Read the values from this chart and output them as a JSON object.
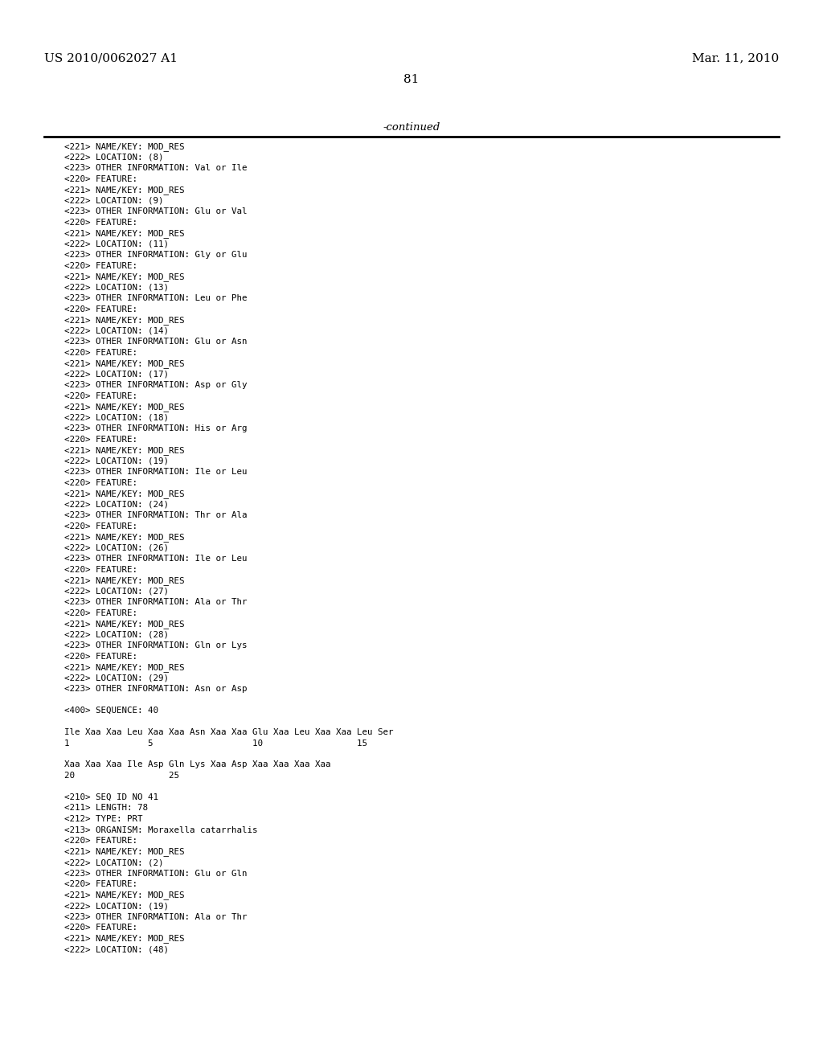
{
  "header_left": "US 2010/0062027 A1",
  "header_right": "Mar. 11, 2010",
  "page_number": "81",
  "continued_text": "-continued",
  "background_color": "#ffffff",
  "text_color": "#000000",
  "lines": [
    "<221> NAME/KEY: MOD_RES",
    "<222> LOCATION: (8)",
    "<223> OTHER INFORMATION: Val or Ile",
    "<220> FEATURE:",
    "<221> NAME/KEY: MOD_RES",
    "<222> LOCATION: (9)",
    "<223> OTHER INFORMATION: Glu or Val",
    "<220> FEATURE:",
    "<221> NAME/KEY: MOD_RES",
    "<222> LOCATION: (11)",
    "<223> OTHER INFORMATION: Gly or Glu",
    "<220> FEATURE:",
    "<221> NAME/KEY: MOD_RES",
    "<222> LOCATION: (13)",
    "<223> OTHER INFORMATION: Leu or Phe",
    "<220> FEATURE:",
    "<221> NAME/KEY: MOD_RES",
    "<222> LOCATION: (14)",
    "<223> OTHER INFORMATION: Glu or Asn",
    "<220> FEATURE:",
    "<221> NAME/KEY: MOD_RES",
    "<222> LOCATION: (17)",
    "<223> OTHER INFORMATION: Asp or Gly",
    "<220> FEATURE:",
    "<221> NAME/KEY: MOD_RES",
    "<222> LOCATION: (18)",
    "<223> OTHER INFORMATION: His or Arg",
    "<220> FEATURE:",
    "<221> NAME/KEY: MOD_RES",
    "<222> LOCATION: (19)",
    "<223> OTHER INFORMATION: Ile or Leu",
    "<220> FEATURE:",
    "<221> NAME/KEY: MOD_RES",
    "<222> LOCATION: (24)",
    "<223> OTHER INFORMATION: Thr or Ala",
    "<220> FEATURE:",
    "<221> NAME/KEY: MOD_RES",
    "<222> LOCATION: (26)",
    "<223> OTHER INFORMATION: Ile or Leu",
    "<220> FEATURE:",
    "<221> NAME/KEY: MOD_RES",
    "<222> LOCATION: (27)",
    "<223> OTHER INFORMATION: Ala or Thr",
    "<220> FEATURE:",
    "<221> NAME/KEY: MOD_RES",
    "<222> LOCATION: (28)",
    "<223> OTHER INFORMATION: Gln or Lys",
    "<220> FEATURE:",
    "<221> NAME/KEY: MOD_RES",
    "<222> LOCATION: (29)",
    "<223> OTHER INFORMATION: Asn or Asp"
  ],
  "sequence_block": [
    "",
    "<400> SEQUENCE: 40",
    "",
    "Ile Xaa Xaa Leu Xaa Xaa Asn Xaa Xaa Glu Xaa Leu Xaa Xaa Leu Ser",
    "1               5                   10                  15",
    "",
    "Xaa Xaa Xaa Ile Asp Gln Lys Xaa Asp Xaa Xaa Xaa Xaa",
    "20                  25"
  ],
  "seq41_block": [
    "",
    "<210> SEQ ID NO 41",
    "<211> LENGTH: 78",
    "<212> TYPE: PRT",
    "<213> ORGANISM: Moraxella catarrhalis",
    "<220> FEATURE:",
    "<221> NAME/KEY: MOD_RES",
    "<222> LOCATION: (2)",
    "<223> OTHER INFORMATION: Glu or Gln",
    "<220> FEATURE:",
    "<221> NAME/KEY: MOD_RES",
    "<222> LOCATION: (19)",
    "<223> OTHER INFORMATION: Ala or Thr",
    "<220> FEATURE:",
    "<221> NAME/KEY: MOD_RES",
    "<222> LOCATION: (48)"
  ]
}
